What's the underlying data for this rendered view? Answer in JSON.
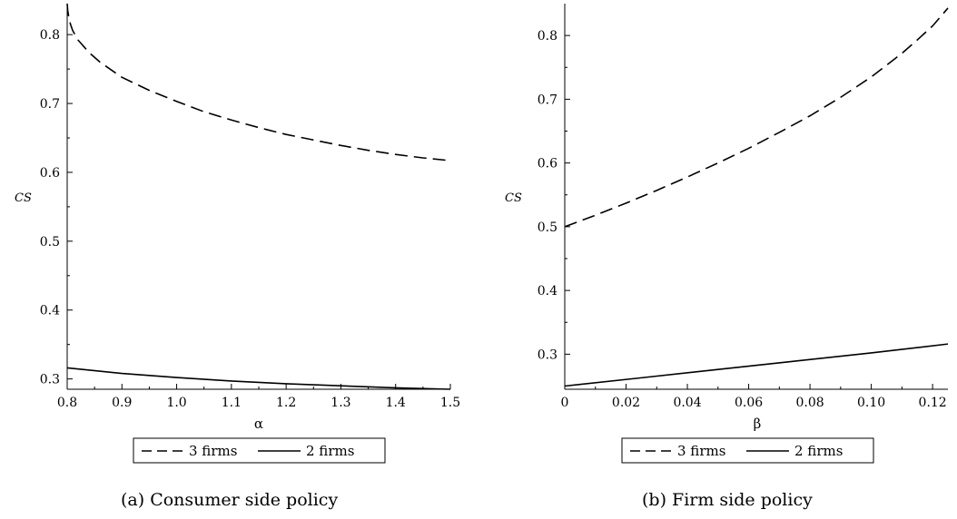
{
  "chart_data": [
    {
      "type": "line",
      "caption": "(a)  Consumer side policy",
      "xlabel": "α",
      "ylabel": "CS",
      "xlim": [
        0.8,
        1.5
      ],
      "ylim": [
        0.285,
        0.845
      ],
      "x_ticks": [
        "0.8",
        "0.9",
        "1.0",
        "1.1",
        "1.2",
        "1.3",
        "1.4",
        "1.5"
      ],
      "y_ticks": [
        "0.3",
        "0.4",
        "0.5",
        "0.6",
        "0.7",
        "0.8"
      ],
      "series": [
        {
          "name": "3 firms",
          "style": "dashed",
          "x": [
            0.8,
            0.801,
            0.803,
            0.806,
            0.81,
            0.82,
            0.84,
            0.86,
            0.9,
            0.95,
            1.0,
            1.05,
            1.1,
            1.15,
            1.2,
            1.25,
            1.3,
            1.35,
            1.4,
            1.45,
            1.5
          ],
          "y": [
            0.845,
            0.835,
            0.825,
            0.815,
            0.806,
            0.792,
            0.774,
            0.76,
            0.738,
            0.719,
            0.703,
            0.688,
            0.676,
            0.665,
            0.655,
            0.647,
            0.639,
            0.632,
            0.626,
            0.621,
            0.617
          ]
        },
        {
          "name": "2 firms",
          "style": "solid",
          "x": [
            0.8,
            0.9,
            1.0,
            1.1,
            1.2,
            1.3,
            1.4,
            1.5
          ],
          "y": [
            0.316,
            0.308,
            0.302,
            0.297,
            0.293,
            0.29,
            0.287,
            0.285
          ]
        }
      ],
      "legend": {
        "placement": "bottom-center",
        "entries": [
          "3 firms",
          "2 firms"
        ]
      },
      "grid": false
    },
    {
      "type": "line",
      "caption": "(b)  Firm side policy",
      "xlabel": "β",
      "ylabel": "CS",
      "xlim": [
        0,
        0.125
      ],
      "ylim": [
        0.245,
        0.85
      ],
      "x_ticks": [
        "0",
        "0.02",
        "0.04",
        "0.06",
        "0.08",
        "0.10",
        "0.12"
      ],
      "y_ticks": [
        "0.3",
        "0.4",
        "0.5",
        "0.6",
        "0.7",
        "0.8"
      ],
      "series": [
        {
          "name": "3 firms",
          "style": "dashed",
          "x": [
            0,
            0.01,
            0.02,
            0.03,
            0.04,
            0.05,
            0.06,
            0.07,
            0.08,
            0.09,
            0.1,
            0.11,
            0.115,
            0.12,
            0.125
          ],
          "y": [
            0.5,
            0.518,
            0.537,
            0.557,
            0.578,
            0.6,
            0.623,
            0.648,
            0.674,
            0.703,
            0.735,
            0.772,
            0.793,
            0.815,
            0.843
          ]
        },
        {
          "name": "2 firms",
          "style": "solid",
          "x": [
            0,
            0.025,
            0.05,
            0.075,
            0.1,
            0.125
          ],
          "y": [
            0.25,
            0.263,
            0.276,
            0.289,
            0.302,
            0.316
          ]
        }
      ],
      "legend": {
        "placement": "bottom-center",
        "entries": [
          "3 firms",
          "2 firms"
        ]
      },
      "grid": false
    }
  ]
}
